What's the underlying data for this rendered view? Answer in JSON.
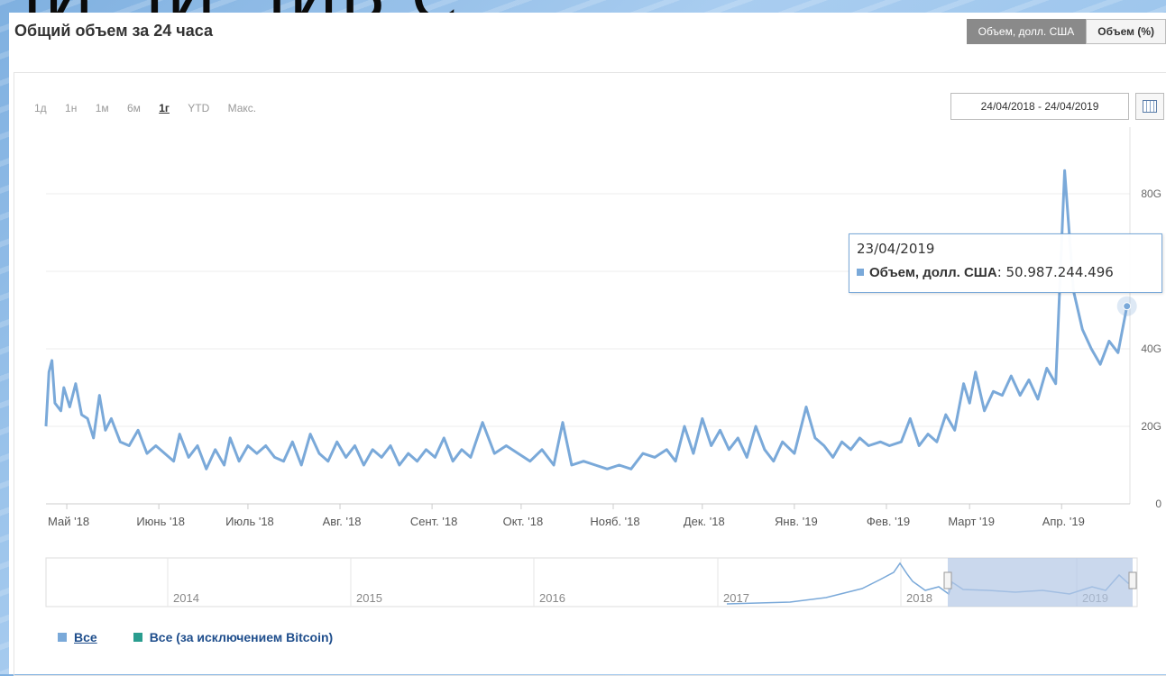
{
  "background_text": "ЧИ ЧИ ЧИБ С",
  "title": "Общий объем за 24 часа",
  "toggle": {
    "active": "Объем, долл. США",
    "inactive": "Объем (%)"
  },
  "ranges": [
    "1д",
    "1н",
    "1м",
    "6м",
    "1г",
    "YTD",
    "Макс."
  ],
  "selected_range": "1г",
  "date_range": "24/04/2018 - 24/04/2019",
  "tooltip": {
    "date": "23/04/2019",
    "series": "Объем, долл. США",
    "value": ": 50.987.244.496"
  },
  "legend": [
    {
      "label": "Все",
      "color": "#7aa9d9"
    },
    {
      "label": "Все (за исключением Bitcoin)",
      "color": "#2a9d8f"
    }
  ],
  "colors": {
    "line": "#7aa9d9",
    "navigator_mask": "#b3c7e6"
  },
  "chart_data": {
    "type": "line",
    "title": "Общий объем за 24 часа",
    "xlabel": "",
    "ylabel": "",
    "x_range": [
      "2018-04-24",
      "2019-04-24"
    ],
    "ylim": [
      0,
      100
    ],
    "y_unit": "G",
    "y_ticks": [
      "0",
      "20G",
      "40G",
      "80G"
    ],
    "x_ticks": [
      "Май '18",
      "Июнь '18",
      "Июль '18",
      "Авг. '18",
      "Сент. '18",
      "Окт. '18",
      "Нояб. '18",
      "Дек. '18",
      "Янв. '19",
      "Фев. '19",
      "Март '19",
      "Апр. '19"
    ],
    "grid": true,
    "series": [
      {
        "name": "Объем, долл. США",
        "points": [
          [
            "2018-04-24",
            20
          ],
          [
            "2018-04-25",
            34
          ],
          [
            "2018-04-26",
            37
          ],
          [
            "2018-04-27",
            26
          ],
          [
            "2018-04-29",
            24
          ],
          [
            "2018-04-30",
            30
          ],
          [
            "2018-05-02",
            25
          ],
          [
            "2018-05-04",
            31
          ],
          [
            "2018-05-06",
            23
          ],
          [
            "2018-05-08",
            22
          ],
          [
            "2018-05-10",
            17
          ],
          [
            "2018-05-12",
            28
          ],
          [
            "2018-05-14",
            19
          ],
          [
            "2018-05-16",
            22
          ],
          [
            "2018-05-19",
            16
          ],
          [
            "2018-05-22",
            15
          ],
          [
            "2018-05-25",
            19
          ],
          [
            "2018-05-28",
            13
          ],
          [
            "2018-05-31",
            15
          ],
          [
            "2018-06-03",
            13
          ],
          [
            "2018-06-06",
            11
          ],
          [
            "2018-06-08",
            18
          ],
          [
            "2018-06-11",
            12
          ],
          [
            "2018-06-14",
            15
          ],
          [
            "2018-06-17",
            9
          ],
          [
            "2018-06-20",
            14
          ],
          [
            "2018-06-23",
            10
          ],
          [
            "2018-06-25",
            17
          ],
          [
            "2018-06-28",
            11
          ],
          [
            "2018-07-01",
            15
          ],
          [
            "2018-07-04",
            13
          ],
          [
            "2018-07-07",
            15
          ],
          [
            "2018-07-10",
            12
          ],
          [
            "2018-07-13",
            11
          ],
          [
            "2018-07-16",
            16
          ],
          [
            "2018-07-19",
            10
          ],
          [
            "2018-07-22",
            18
          ],
          [
            "2018-07-25",
            13
          ],
          [
            "2018-07-28",
            11
          ],
          [
            "2018-07-31",
            16
          ],
          [
            "2018-08-03",
            12
          ],
          [
            "2018-08-06",
            15
          ],
          [
            "2018-08-09",
            10
          ],
          [
            "2018-08-12",
            14
          ],
          [
            "2018-08-15",
            12
          ],
          [
            "2018-08-18",
            15
          ],
          [
            "2018-08-21",
            10
          ],
          [
            "2018-08-24",
            13
          ],
          [
            "2018-08-27",
            11
          ],
          [
            "2018-08-30",
            14
          ],
          [
            "2018-09-02",
            12
          ],
          [
            "2018-09-05",
            17
          ],
          [
            "2018-09-08",
            11
          ],
          [
            "2018-09-11",
            14
          ],
          [
            "2018-09-14",
            12
          ],
          [
            "2018-09-18",
            21
          ],
          [
            "2018-09-22",
            13
          ],
          [
            "2018-09-26",
            15
          ],
          [
            "2018-09-30",
            13
          ],
          [
            "2018-10-04",
            11
          ],
          [
            "2018-10-08",
            14
          ],
          [
            "2018-10-12",
            10
          ],
          [
            "2018-10-15",
            21
          ],
          [
            "2018-10-18",
            10
          ],
          [
            "2018-10-22",
            11
          ],
          [
            "2018-10-26",
            10
          ],
          [
            "2018-10-30",
            9
          ],
          [
            "2018-11-03",
            10
          ],
          [
            "2018-11-07",
            9
          ],
          [
            "2018-11-11",
            13
          ],
          [
            "2018-11-15",
            12
          ],
          [
            "2018-11-19",
            14
          ],
          [
            "2018-11-22",
            11
          ],
          [
            "2018-11-25",
            20
          ],
          [
            "2018-11-28",
            13
          ],
          [
            "2018-12-01",
            22
          ],
          [
            "2018-12-04",
            15
          ],
          [
            "2018-12-07",
            19
          ],
          [
            "2018-12-10",
            14
          ],
          [
            "2018-12-13",
            17
          ],
          [
            "2018-12-16",
            12
          ],
          [
            "2018-12-19",
            20
          ],
          [
            "2018-12-22",
            14
          ],
          [
            "2018-12-25",
            11
          ],
          [
            "2018-12-28",
            16
          ],
          [
            "2019-01-01",
            13
          ],
          [
            "2019-01-05",
            25
          ],
          [
            "2019-01-08",
            17
          ],
          [
            "2019-01-11",
            15
          ],
          [
            "2019-01-14",
            12
          ],
          [
            "2019-01-17",
            16
          ],
          [
            "2019-01-20",
            14
          ],
          [
            "2019-01-23",
            17
          ],
          [
            "2019-01-26",
            15
          ],
          [
            "2019-01-30",
            16
          ],
          [
            "2019-02-02",
            15
          ],
          [
            "2019-02-06",
            16
          ],
          [
            "2019-02-09",
            22
          ],
          [
            "2019-02-12",
            15
          ],
          [
            "2019-02-15",
            18
          ],
          [
            "2019-02-18",
            16
          ],
          [
            "2019-02-21",
            23
          ],
          [
            "2019-02-24",
            19
          ],
          [
            "2019-02-27",
            31
          ],
          [
            "2019-03-01",
            26
          ],
          [
            "2019-03-03",
            34
          ],
          [
            "2019-03-06",
            24
          ],
          [
            "2019-03-09",
            29
          ],
          [
            "2019-03-12",
            28
          ],
          [
            "2019-03-15",
            33
          ],
          [
            "2019-03-18",
            28
          ],
          [
            "2019-03-21",
            32
          ],
          [
            "2019-03-24",
            27
          ],
          [
            "2019-03-27",
            35
          ],
          [
            "2019-03-30",
            31
          ],
          [
            "2019-04-02",
            86
          ],
          [
            "2019-04-05",
            55
          ],
          [
            "2019-04-08",
            45
          ],
          [
            "2019-04-11",
            40
          ],
          [
            "2019-04-14",
            36
          ],
          [
            "2019-04-17",
            42
          ],
          [
            "2019-04-20",
            39
          ],
          [
            "2019-04-23",
            51
          ]
        ]
      }
    ],
    "navigator": {
      "year_labels": [
        "2014",
        "2015",
        "2016",
        "2017",
        "2018",
        "2019"
      ],
      "selected_range": [
        "2018-04-24",
        "2019-04-24"
      ]
    }
  }
}
